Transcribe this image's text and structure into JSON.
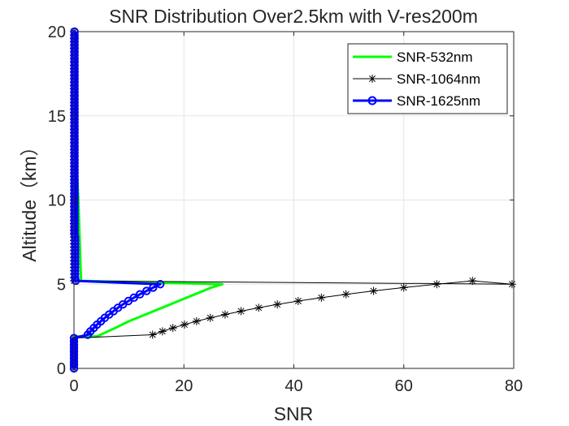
{
  "chart_data": {
    "type": "line",
    "title": "SNR Distribution Over2.5km with V-res200m",
    "xlabel": "SNR",
    "ylabel": "Altitude（km）",
    "xlim": [
      0,
      80
    ],
    "ylim": [
      0,
      20
    ],
    "xticks": [
      "0",
      "20",
      "40",
      "60",
      "80"
    ],
    "yticks": [
      "0",
      "5",
      "10",
      "15",
      "20"
    ],
    "grid": true,
    "legend_position": "top-right",
    "colors": {
      "axis": "#262626",
      "grid": "#e5e5e5"
    },
    "series": [
      {
        "name": "SNR-532nm",
        "color": "#00ff00",
        "line_width": 3,
        "marker": "none",
        "points": [
          [
            0,
            0
          ],
          [
            0,
            1.8
          ],
          [
            0.3,
            1.9
          ],
          [
            4.2,
            1.9
          ],
          [
            5.5,
            2.1
          ],
          [
            7.5,
            2.4
          ],
          [
            10,
            2.8
          ],
          [
            13,
            3.2
          ],
          [
            16,
            3.6
          ],
          [
            19,
            4.0
          ],
          [
            22,
            4.4
          ],
          [
            25,
            4.8
          ],
          [
            27,
            5.0
          ],
          [
            1.3,
            5.2
          ],
          [
            1.2,
            6
          ],
          [
            1.0,
            8
          ],
          [
            0.8,
            10
          ],
          [
            0.5,
            12
          ],
          [
            0.4,
            14
          ],
          [
            0.3,
            16
          ],
          [
            0.2,
            18
          ],
          [
            0.1,
            20
          ]
        ]
      },
      {
        "name": "SNR-1064nm",
        "color": "#000000",
        "line_width": 1,
        "marker": "asterisk",
        "points": [
          [
            0,
            0.0
          ],
          [
            0,
            0.2
          ],
          [
            0,
            0.4
          ],
          [
            0,
            0.6
          ],
          [
            0,
            0.8
          ],
          [
            0,
            1.0
          ],
          [
            0,
            1.2
          ],
          [
            0,
            1.4
          ],
          [
            0,
            1.6
          ],
          [
            0,
            1.8
          ],
          [
            14.3,
            2.0
          ],
          [
            16.1,
            2.2
          ],
          [
            18.0,
            2.4
          ],
          [
            20.1,
            2.6
          ],
          [
            22.3,
            2.8
          ],
          [
            24.8,
            3.0
          ],
          [
            27.5,
            3.2
          ],
          [
            30.4,
            3.4
          ],
          [
            33.6,
            3.6
          ],
          [
            37.0,
            3.8
          ],
          [
            40.8,
            4.0
          ],
          [
            45.0,
            4.2
          ],
          [
            49.5,
            4.4
          ],
          [
            54.5,
            4.6
          ],
          [
            60.0,
            4.8
          ],
          [
            66.0,
            5.0
          ],
          [
            72.5,
            5.2
          ],
          [
            79.7,
            5.0
          ],
          [
            0,
            5.2
          ],
          [
            0,
            5.4
          ],
          [
            0,
            5.6
          ],
          [
            0,
            5.8
          ],
          [
            0,
            6.0
          ],
          [
            0,
            6.2
          ],
          [
            0,
            6.4
          ],
          [
            0,
            6.6
          ],
          [
            0,
            6.8
          ],
          [
            0,
            7.0
          ],
          [
            0,
            7.2
          ],
          [
            0,
            7.4
          ],
          [
            0,
            7.6
          ],
          [
            0,
            7.8
          ],
          [
            0,
            8.0
          ],
          [
            0,
            8.2
          ],
          [
            0,
            8.4
          ],
          [
            0,
            8.6
          ],
          [
            0,
            8.8
          ],
          [
            0,
            9.0
          ],
          [
            0,
            9.2
          ],
          [
            0,
            9.4
          ],
          [
            0,
            9.6
          ],
          [
            0,
            9.8
          ],
          [
            0,
            10.0
          ],
          [
            0,
            10.2
          ],
          [
            0,
            10.4
          ],
          [
            0,
            10.6
          ],
          [
            0,
            10.8
          ],
          [
            0,
            11.0
          ],
          [
            0,
            11.2
          ],
          [
            0,
            11.4
          ],
          [
            0,
            11.6
          ],
          [
            0,
            11.8
          ],
          [
            0,
            12.0
          ],
          [
            0,
            12.2
          ],
          [
            0,
            12.4
          ],
          [
            0,
            12.6
          ],
          [
            0,
            12.8
          ],
          [
            0,
            13.0
          ],
          [
            0,
            13.2
          ],
          [
            0,
            13.4
          ],
          [
            0,
            13.6
          ],
          [
            0,
            13.8
          ],
          [
            0,
            14.0
          ],
          [
            0,
            14.2
          ],
          [
            0,
            14.4
          ],
          [
            0,
            14.6
          ],
          [
            0,
            14.8
          ],
          [
            0,
            15.0
          ],
          [
            0,
            15.2
          ],
          [
            0,
            15.4
          ],
          [
            0,
            15.6
          ],
          [
            0,
            15.8
          ],
          [
            0,
            16.0
          ],
          [
            0,
            16.2
          ],
          [
            0,
            16.4
          ],
          [
            0,
            16.6
          ],
          [
            0,
            16.8
          ],
          [
            0,
            17.0
          ],
          [
            0,
            17.2
          ],
          [
            0,
            17.4
          ],
          [
            0,
            17.6
          ],
          [
            0,
            17.8
          ],
          [
            0,
            18.0
          ],
          [
            0,
            18.2
          ],
          [
            0,
            18.4
          ],
          [
            0,
            18.6
          ],
          [
            0,
            18.8
          ],
          [
            0,
            19.0
          ],
          [
            0,
            19.2
          ],
          [
            0,
            19.4
          ],
          [
            0,
            19.6
          ],
          [
            0,
            19.8
          ],
          [
            0,
            20.0
          ]
        ]
      },
      {
        "name": "SNR-1625nm",
        "color": "#0000ff",
        "line_width": 3,
        "marker": "circle",
        "points": [
          [
            0,
            0.0
          ],
          [
            0,
            0.2
          ],
          [
            0,
            0.4
          ],
          [
            0,
            0.6
          ],
          [
            0,
            0.8
          ],
          [
            0,
            1.0
          ],
          [
            0,
            1.2
          ],
          [
            0,
            1.4
          ],
          [
            0,
            1.6
          ],
          [
            0,
            1.8
          ],
          [
            2.5,
            2.0
          ],
          [
            3.0,
            2.2
          ],
          [
            3.6,
            2.4
          ],
          [
            4.2,
            2.6
          ],
          [
            4.9,
            2.8
          ],
          [
            5.6,
            3.0
          ],
          [
            6.4,
            3.2
          ],
          [
            7.2,
            3.4
          ],
          [
            8.0,
            3.6
          ],
          [
            8.9,
            3.8
          ],
          [
            9.9,
            4.0
          ],
          [
            10.9,
            4.2
          ],
          [
            12.0,
            4.4
          ],
          [
            13.2,
            4.6
          ],
          [
            14.4,
            4.8
          ],
          [
            15.7,
            5.0
          ],
          [
            0.3,
            5.2
          ],
          [
            0.2,
            5.4
          ],
          [
            0.2,
            5.6
          ],
          [
            0.2,
            5.8
          ],
          [
            0.2,
            6.0
          ],
          [
            0.2,
            6.2
          ],
          [
            0.2,
            6.4
          ],
          [
            0.2,
            6.6
          ],
          [
            0.2,
            6.8
          ],
          [
            0.2,
            7.0
          ],
          [
            0.2,
            7.2
          ],
          [
            0.2,
            7.4
          ],
          [
            0.2,
            7.6
          ],
          [
            0.2,
            7.8
          ],
          [
            0.1,
            8.0
          ],
          [
            0.1,
            8.2
          ],
          [
            0.1,
            8.4
          ],
          [
            0.1,
            8.6
          ],
          [
            0.1,
            8.8
          ],
          [
            0.1,
            9.0
          ],
          [
            0.1,
            9.2
          ],
          [
            0.1,
            9.4
          ],
          [
            0.1,
            9.6
          ],
          [
            0.1,
            9.8
          ],
          [
            0.1,
            10.0
          ],
          [
            0.1,
            10.2
          ],
          [
            0.1,
            10.4
          ],
          [
            0.1,
            10.6
          ],
          [
            0.1,
            10.8
          ],
          [
            0.1,
            11.0
          ],
          [
            0.1,
            11.2
          ],
          [
            0.1,
            11.4
          ],
          [
            0.1,
            11.6
          ],
          [
            0.1,
            11.8
          ],
          [
            0.1,
            12.0
          ],
          [
            0.1,
            12.2
          ],
          [
            0.1,
            12.4
          ],
          [
            0.1,
            12.6
          ],
          [
            0.1,
            12.8
          ],
          [
            0.1,
            13.0
          ],
          [
            0.1,
            13.2
          ],
          [
            0.1,
            13.4
          ],
          [
            0.1,
            13.6
          ],
          [
            0.1,
            13.8
          ],
          [
            0.1,
            14.0
          ],
          [
            0.1,
            14.2
          ],
          [
            0.1,
            14.4
          ],
          [
            0.1,
            14.6
          ],
          [
            0.1,
            14.8
          ],
          [
            0.1,
            15.0
          ],
          [
            0.1,
            15.2
          ],
          [
            0.1,
            15.4
          ],
          [
            0.1,
            15.6
          ],
          [
            0.1,
            15.8
          ],
          [
            0.1,
            16.0
          ],
          [
            0.1,
            16.2
          ],
          [
            0.1,
            16.4
          ],
          [
            0.1,
            16.6
          ],
          [
            0.1,
            16.8
          ],
          [
            0.1,
            17.0
          ],
          [
            0.1,
            17.2
          ],
          [
            0.1,
            17.4
          ],
          [
            0.1,
            17.6
          ],
          [
            0.1,
            17.8
          ],
          [
            0.1,
            18.0
          ],
          [
            0.1,
            18.2
          ],
          [
            0.1,
            18.4
          ],
          [
            0.1,
            18.6
          ],
          [
            0.1,
            18.8
          ],
          [
            0.1,
            19.0
          ],
          [
            0.1,
            19.2
          ],
          [
            0.1,
            19.4
          ],
          [
            0.1,
            19.6
          ],
          [
            0.1,
            19.8
          ],
          [
            0.1,
            20.0
          ]
        ]
      }
    ]
  }
}
